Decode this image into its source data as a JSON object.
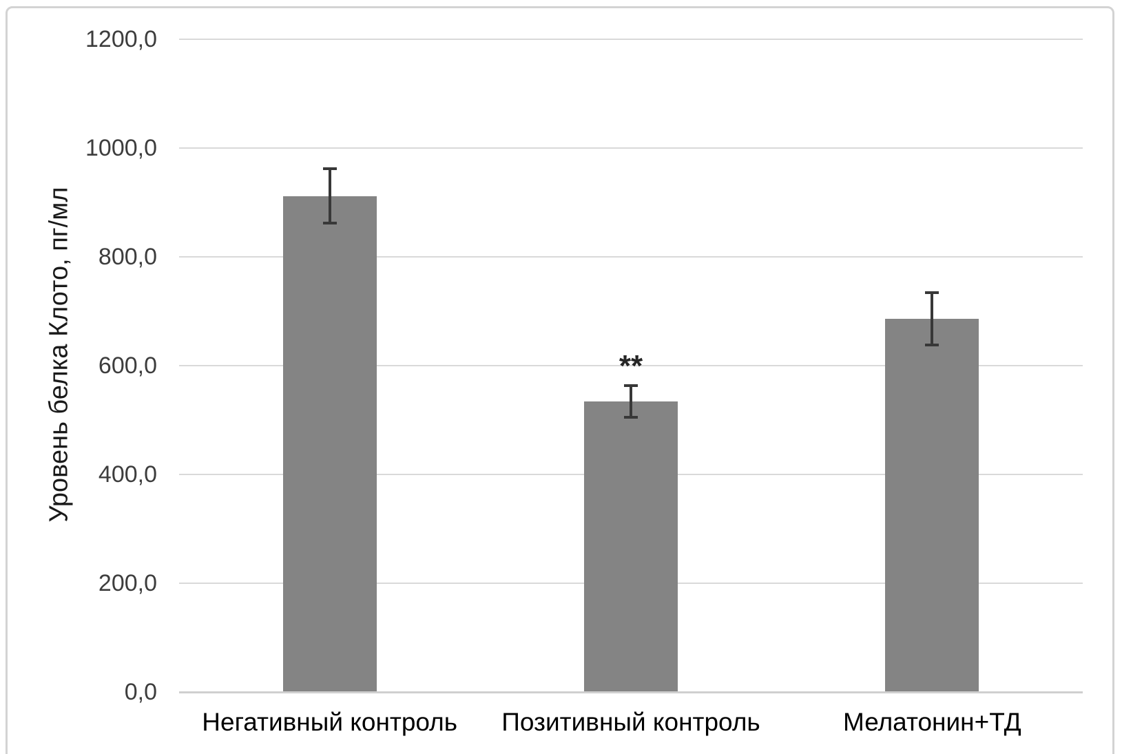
{
  "chart_data": {
    "type": "bar",
    "title": "",
    "xlabel": "",
    "ylabel": "Уровень белка Клото, пг/мл",
    "categories": [
      "Негативный контроль",
      "Позитивный контроль",
      "Мелатонин+ТД"
    ],
    "series": [
      {
        "name": "Уровень белка Клото",
        "values": [
          912,
          534,
          686
        ],
        "errors": [
          52,
          32,
          51
        ]
      }
    ],
    "annotations": [
      {
        "category_index": 1,
        "text": "**"
      }
    ],
    "ylim": [
      0,
      1200
    ],
    "yticks": [
      {
        "value": 0,
        "label": "0,0"
      },
      {
        "value": 200,
        "label": "200,0"
      },
      {
        "value": 400,
        "label": "400,0"
      },
      {
        "value": 600,
        "label": "600,0"
      },
      {
        "value": 800,
        "label": "800,0"
      },
      {
        "value": 1000,
        "label": "1000,0"
      },
      {
        "value": 1200,
        "label": "1200,0"
      }
    ],
    "grid": true,
    "legend": false,
    "colors": {
      "bar": "#848484",
      "error_bar": "#383838",
      "gridline": "#d9d9d9",
      "axis_line": "#cfcfcf",
      "tick_text": "#3d3d3d",
      "category_text": "#000000",
      "annotation": "#262626",
      "frame_border": "#d3d3d3",
      "background": "#ffffff"
    }
  }
}
